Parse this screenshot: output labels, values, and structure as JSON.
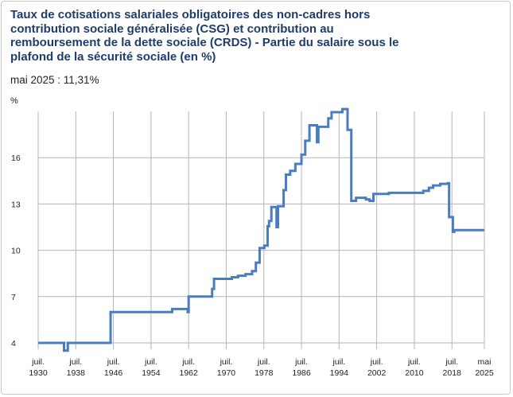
{
  "chart_data": {
    "type": "line",
    "title": "Taux de cotisations salariales obligatoires des non-cadres hors contribution sociale généralisée (CSG) et contribution au remboursement de la dette sociale (CRDS) - Partie du salaire sous le plafond de la sécurité sociale (en %)",
    "subtitle": "mai 2025 : 11,31%",
    "ylabel": "%",
    "xlabel": "",
    "ylim": [
      4,
      19
    ],
    "yticks": [
      4,
      7,
      10,
      13,
      16
    ],
    "xticks": [
      {
        "line1": "juil.",
        "line2": "1930",
        "x": 1930.5
      },
      {
        "line1": "juil.",
        "line2": "1938",
        "x": 1938.5
      },
      {
        "line1": "juil.",
        "line2": "1946",
        "x": 1946.5
      },
      {
        "line1": "juil.",
        "line2": "1954",
        "x": 1954.5
      },
      {
        "line1": "juil.",
        "line2": "1962",
        "x": 1962.5
      },
      {
        "line1": "juil.",
        "line2": "1970",
        "x": 1970.5
      },
      {
        "line1": "juil.",
        "line2": "1978",
        "x": 1978.5
      },
      {
        "line1": "juil.",
        "line2": "1986",
        "x": 1986.5
      },
      {
        "line1": "juil.",
        "line2": "1994",
        "x": 1994.5
      },
      {
        "line1": "juil.",
        "line2": "2002",
        "x": 2002.5
      },
      {
        "line1": "juil.",
        "line2": "2010",
        "x": 2010.5
      },
      {
        "line1": "juil.",
        "line2": "2018",
        "x": 2018.5
      },
      {
        "line1": "mai",
        "line2": "2025",
        "x": 2025.4
      }
    ],
    "grid": true,
    "legend": "none",
    "color": "#4a7cc1",
    "series": [
      {
        "name": "",
        "points": [
          [
            1930.5,
            4.0
          ],
          [
            1936.0,
            4.0
          ],
          [
            1936.0,
            3.5
          ],
          [
            1936.8,
            3.5
          ],
          [
            1936.8,
            4.0
          ],
          [
            1945.9,
            4.0
          ],
          [
            1945.9,
            6.0
          ],
          [
            1959.0,
            6.0
          ],
          [
            1959.0,
            6.2
          ],
          [
            1962.3,
            6.2
          ],
          [
            1962.3,
            6.0
          ],
          [
            1962.5,
            6.0
          ],
          [
            1962.5,
            7.0
          ],
          [
            1967.5,
            7.0
          ],
          [
            1967.5,
            7.5
          ],
          [
            1967.9,
            7.5
          ],
          [
            1967.9,
            8.15
          ],
          [
            1971.7,
            8.15
          ],
          [
            1971.7,
            8.25
          ],
          [
            1973.0,
            8.25
          ],
          [
            1973.0,
            8.35
          ],
          [
            1974.6,
            8.35
          ],
          [
            1974.6,
            8.45
          ],
          [
            1976.0,
            8.45
          ],
          [
            1976.0,
            8.65
          ],
          [
            1976.8,
            8.65
          ],
          [
            1976.8,
            9.2
          ],
          [
            1977.6,
            9.2
          ],
          [
            1977.6,
            10.15
          ],
          [
            1978.6,
            10.15
          ],
          [
            1978.6,
            10.3
          ],
          [
            1979.3,
            10.3
          ],
          [
            1979.3,
            11.55
          ],
          [
            1979.6,
            11.55
          ],
          [
            1979.6,
            11.9
          ],
          [
            1980.1,
            11.9
          ],
          [
            1980.1,
            12.8
          ],
          [
            1981.2,
            12.8
          ],
          [
            1981.2,
            11.5
          ],
          [
            1981.5,
            11.5
          ],
          [
            1981.5,
            12.85
          ],
          [
            1982.7,
            12.85
          ],
          [
            1982.7,
            13.9
          ],
          [
            1983.2,
            13.9
          ],
          [
            1983.2,
            14.9
          ],
          [
            1984.1,
            14.9
          ],
          [
            1984.1,
            15.15
          ],
          [
            1985.2,
            15.15
          ],
          [
            1985.2,
            15.6
          ],
          [
            1986.5,
            15.6
          ],
          [
            1986.5,
            16.2
          ],
          [
            1987.3,
            16.2
          ],
          [
            1987.3,
            17.1
          ],
          [
            1988.2,
            17.1
          ],
          [
            1988.2,
            18.1
          ],
          [
            1989.8,
            18.1
          ],
          [
            1989.8,
            17.0
          ],
          [
            1990.1,
            17.0
          ],
          [
            1990.1,
            18.0
          ],
          [
            1992.2,
            18.0
          ],
          [
            1992.2,
            18.55
          ],
          [
            1992.9,
            18.55
          ],
          [
            1992.9,
            18.95
          ],
          [
            1995.2,
            18.95
          ],
          [
            1995.2,
            19.15
          ],
          [
            1996.3,
            19.15
          ],
          [
            1996.3,
            17.8
          ],
          [
            1997.1,
            17.8
          ],
          [
            1997.1,
            13.2
          ],
          [
            1998.1,
            13.2
          ],
          [
            1998.1,
            13.4
          ],
          [
            2000.2,
            13.4
          ],
          [
            2000.2,
            13.3
          ],
          [
            2001.0,
            13.3
          ],
          [
            2001.0,
            13.2
          ],
          [
            2001.8,
            13.2
          ],
          [
            2001.8,
            13.65
          ],
          [
            2005.1,
            13.65
          ],
          [
            2005.1,
            13.72
          ],
          [
            2012.4,
            13.72
          ],
          [
            2012.4,
            13.85
          ],
          [
            2013.6,
            13.85
          ],
          [
            2013.6,
            14.05
          ],
          [
            2014.5,
            14.05
          ],
          [
            2014.5,
            14.2
          ],
          [
            2016.0,
            14.2
          ],
          [
            2016.0,
            14.3
          ],
          [
            2017.6,
            14.3
          ],
          [
            2017.6,
            14.35
          ],
          [
            2017.9,
            14.35
          ],
          [
            2017.9,
            12.15
          ],
          [
            2018.7,
            12.15
          ],
          [
            2018.7,
            11.2
          ],
          [
            2019.0,
            11.2
          ],
          [
            2019.0,
            11.31
          ],
          [
            2025.4,
            11.31
          ]
        ]
      }
    ]
  }
}
